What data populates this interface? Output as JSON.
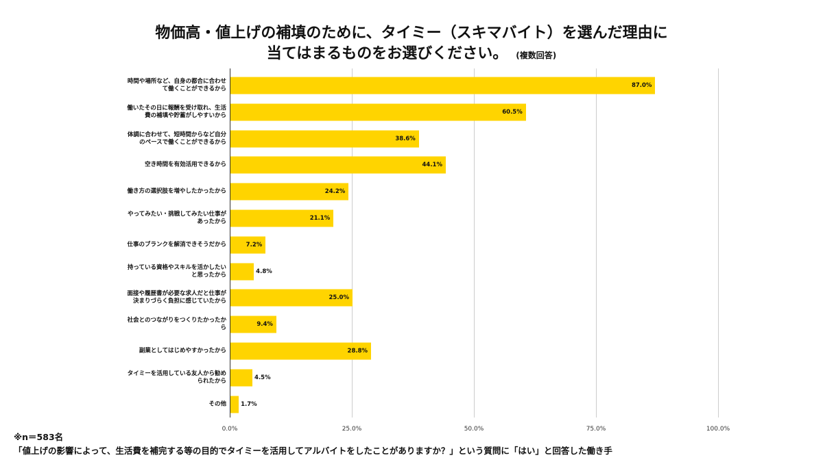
{
  "chart_data": {
    "type": "bar",
    "orientation": "horizontal",
    "title_line1": "物価高・値上げの補填のために、タイミー（スキマバイト）を選んだ理由に",
    "title_line2": "当てはまるものをお選びください。",
    "title_note": "(複数回答)",
    "categories": [
      "時間や場所など、自身の都合に合わせ\nて働くことができるから",
      "働いたその日に報酬を受け取れ、生活\n費の補填や貯蓄がしやすいから",
      "体調に合わせて、短時間からなど自分\nのペースで働くことができるから",
      "空き時間を有効活用できるから",
      "働き方の選択肢を増やしたかったから",
      "やってみたい・挑戦してみたい仕事が\nあったから",
      "仕事のブランクを解消できそうだから",
      "持っている資格やスキルを活かしたい\nと思ったから",
      "面接や履歴書が必要な求人だと仕事が\n決まりづらく負担に感じていたから",
      "社会とのつながりをつくりたかったか\nら",
      "副業としてはじめやすかったから",
      "タイミーを活用している友人から勧め\nられたから",
      "その他"
    ],
    "values": [
      87.0,
      60.5,
      38.6,
      44.1,
      24.2,
      21.1,
      7.2,
      4.8,
      25.0,
      9.4,
      28.8,
      4.5,
      1.7
    ],
    "value_labels": [
      "87.0%",
      "60.5%",
      "38.6%",
      "44.1%",
      "24.2%",
      "21.1%",
      "7.2%",
      "4.8%",
      "25.0%",
      "9.4%",
      "28.8%",
      "4.5%",
      "1.7%"
    ],
    "xlim": [
      0,
      100
    ],
    "xticks": [
      "0.0%",
      "25.0%",
      "50.0%",
      "75.0%",
      "100.0%"
    ],
    "grid": true,
    "bar_color": "#FFD400"
  },
  "footer": {
    "n": "※n＝583名",
    "note": "「値上げの影響によって、生活費を補完する等の目的でタイミーを活用してアルバイトをしたことがありますか？」という質問に「はい」と回答した働き手"
  }
}
